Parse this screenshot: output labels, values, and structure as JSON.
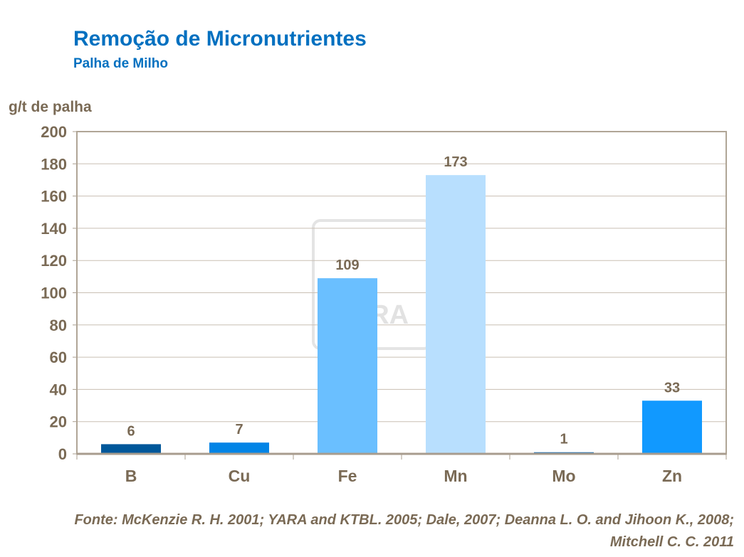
{
  "chart_data": {
    "type": "bar",
    "title": "Remoção de Micronutrientes",
    "subtitle": "Palha de Milho",
    "ylabel": "g/t de palha",
    "xlabel": "",
    "categories": [
      "B",
      "Cu",
      "Fe",
      "Mn",
      "Mo",
      "Zn"
    ],
    "values": [
      6,
      7,
      109,
      173,
      1,
      33
    ],
    "colors": [
      "#00579A",
      "#0084E6",
      "#6ABFFF",
      "#B8DFFE",
      "#0060B0",
      "#1199FF"
    ],
    "ylim": [
      0,
      200
    ],
    "yticks": [
      0,
      20,
      40,
      60,
      80,
      100,
      120,
      140,
      160,
      180,
      200
    ],
    "grid": true,
    "legend": "none",
    "source": "Fonte: McKenzie R. H. 2001; YARA and KTBL. 2005; Dale, 2007; Deanna L. O. and Jihoon K.,  2008; Mitchell C. C. 2011"
  },
  "watermark": {
    "text": "YARA"
  }
}
